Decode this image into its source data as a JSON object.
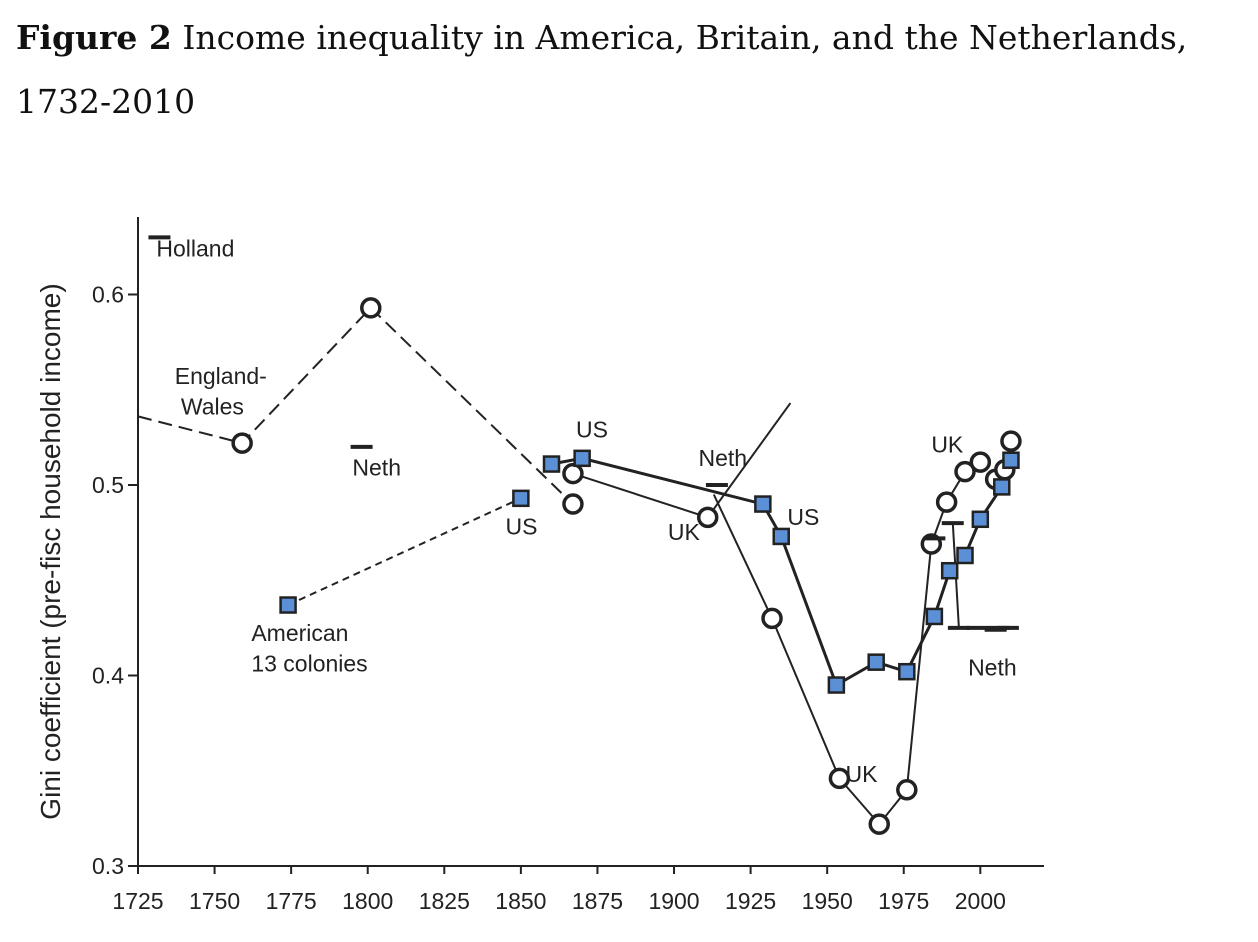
{
  "figure": {
    "label": "Figure 2",
    "title": "Income inequality in America, Britain, and the Netherlands, 1732-2010"
  },
  "chart_data": {
    "type": "line",
    "title": "Income inequality in America, Britain, and the Netherlands, 1732-2010",
    "xlabel": "",
    "ylabel": "Gini coefficient (pre-fisc household income)",
    "xlim": [
      1725,
      2020
    ],
    "ylim": [
      0.3,
      0.64
    ],
    "xticks": [
      1725,
      1750,
      1775,
      1800,
      1825,
      1850,
      1875,
      1900,
      1925,
      1950,
      1975,
      2000
    ],
    "yticks": [
      0.3,
      0.4,
      0.5,
      0.6
    ],
    "grid": false,
    "series": [
      {
        "group": "UK",
        "marker": "open-circle",
        "segments": [
          {
            "style": "dashed",
            "points": [
              [
                1725,
                0.536
              ],
              [
                1759,
                0.522
              ],
              [
                1801,
                0.593
              ],
              [
                1867,
                0.49
              ]
            ]
          },
          {
            "style": "solid",
            "points": [
              [
                1867,
                0.506
              ],
              [
                1911,
                0.483
              ],
              [
                1938,
                0.543
              ]
            ]
          },
          {
            "style": "solid",
            "points": [
              [
                1913,
                0.495
              ],
              [
                1932,
                0.43
              ],
              [
                1954,
                0.346
              ],
              [
                1967,
                0.322
              ],
              [
                1976,
                0.34
              ],
              [
                1984,
                0.469
              ],
              [
                1989,
                0.491
              ],
              [
                1995,
                0.507
              ],
              [
                2000,
                0.512
              ]
            ]
          },
          {
            "style": "solid",
            "points": [
              [
                2005,
                0.503
              ],
              [
                2008,
                0.508
              ],
              [
                2010,
                0.523
              ]
            ]
          }
        ]
      },
      {
        "group": "US",
        "marker": "filled-square",
        "color": "#5b8fd6",
        "segments": [
          {
            "style": "dashed",
            "points": [
              [
                1774,
                0.437
              ],
              [
                1850,
                0.493
              ]
            ]
          },
          {
            "style": "solid",
            "points": [
              [
                1860,
                0.511
              ],
              [
                1870,
                0.514
              ],
              [
                1929,
                0.49
              ],
              [
                1935,
                0.473
              ],
              [
                1953,
                0.395
              ],
              [
                1966,
                0.407
              ],
              [
                1976,
                0.402
              ],
              [
                1985,
                0.431
              ],
              [
                1990,
                0.455
              ],
              [
                1995,
                0.463
              ],
              [
                2000,
                0.482
              ],
              [
                2007,
                0.499
              ],
              [
                2010,
                0.513
              ]
            ]
          }
        ]
      },
      {
        "group": "Neth",
        "marker": "dash",
        "segments": [
          {
            "style": "solid",
            "points": [
              [
                1991,
                0.48
              ],
              [
                1993,
                0.425
              ],
              [
                2006,
                0.425
              ]
            ]
          }
        ],
        "standalone_points": [
          [
            1732,
            0.63
          ],
          [
            1798,
            0.52
          ],
          [
            1914,
            0.5
          ],
          [
            1985,
            0.472
          ],
          [
            1999,
            0.425
          ],
          [
            2005,
            0.424
          ],
          [
            2009,
            0.425
          ]
        ]
      }
    ],
    "annotations": [
      {
        "text": "Holland",
        "x": 1731,
        "y": 0.62
      },
      {
        "text": "England-",
        "x": 1737,
        "y": 0.553
      },
      {
        "text": "Wales",
        "x": 1739,
        "y": 0.537
      },
      {
        "text": "Neth",
        "x": 1795,
        "y": 0.505
      },
      {
        "text": "American",
        "x": 1762,
        "y": 0.418
      },
      {
        "text": "13 colonies",
        "x": 1762,
        "y": 0.402
      },
      {
        "text": "US",
        "x": 1845,
        "y": 0.474
      },
      {
        "text": "US",
        "x": 1868,
        "y": 0.525
      },
      {
        "text": "Neth",
        "x": 1908,
        "y": 0.51
      },
      {
        "text": "UK",
        "x": 1898,
        "y": 0.471
      },
      {
        "text": "US",
        "x": 1937,
        "y": 0.479
      },
      {
        "text": "UK",
        "x": 1956,
        "y": 0.344
      },
      {
        "text": "UK",
        "x": 1984,
        "y": 0.517
      },
      {
        "text": "Neth",
        "x": 1996,
        "y": 0.4
      }
    ]
  }
}
